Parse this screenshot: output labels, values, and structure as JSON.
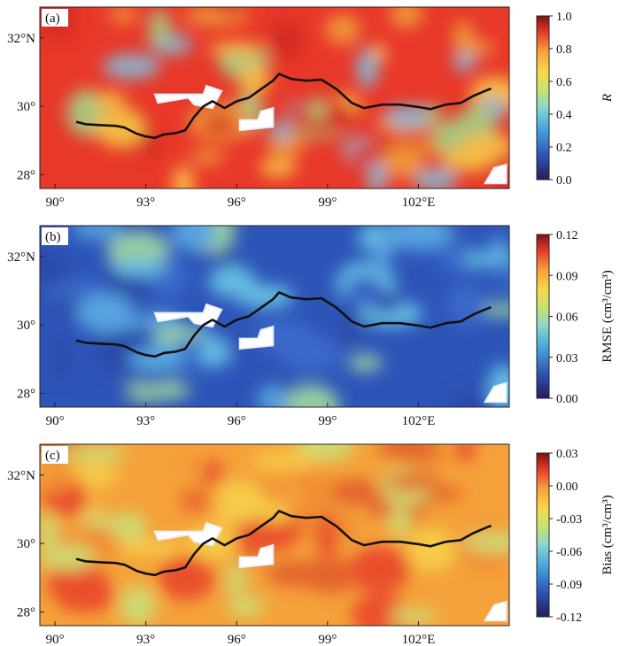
{
  "panels": [
    {
      "id": "a",
      "label": "(a)",
      "variable": "R",
      "colorbar": {
        "ticks": [
          "1.0",
          "0.8",
          "0.6",
          "0.4",
          "0.2",
          "0.0"
        ],
        "label": "R",
        "label_italic": true
      },
      "field": {
        "base": "#e8382a",
        "accents": [
          "#f0a43a",
          "#f7d24a",
          "#9fdc8a",
          "#7cc6e6",
          "#d12a22"
        ]
      }
    },
    {
      "id": "b",
      "label": "(b)",
      "variable": "RMSE",
      "colorbar": {
        "ticks": [
          "0.12",
          "0.09",
          "0.06",
          "0.03",
          "0.00"
        ],
        "label": "RMSE (cm³/cm³)",
        "label_italic": false
      },
      "field": {
        "base": "#2d55b8",
        "accents": [
          "#5fb1e6",
          "#6fd0ea",
          "#a8e0a0",
          "#3c6ccc",
          "#2a4aa8"
        ]
      }
    },
    {
      "id": "c",
      "label": "(c)",
      "variable": "Bias",
      "colorbar": {
        "ticks": [
          "0.03",
          "0.00",
          "-0.03",
          "-0.06",
          "-0.09",
          "-0.12"
        ],
        "label": "Bias (cm³/cm³)",
        "label_italic": false
      },
      "field": {
        "base": "#f5a23a",
        "accents": [
          "#f7d34c",
          "#e8402c",
          "#c8e27a",
          "#f08a32",
          "#e05a2a"
        ]
      }
    }
  ],
  "axes": {
    "x_ticks": [
      "90°",
      "93°",
      "96°",
      "99°",
      "102°E"
    ],
    "x_values": [
      90,
      93,
      96,
      99,
      102
    ],
    "y_ticks": [
      "32°N",
      "30°",
      "28°"
    ],
    "y_values": [
      32,
      30,
      28
    ],
    "lon_range": [
      89.5,
      105.0
    ],
    "lat_range": [
      27.6,
      32.9
    ]
  },
  "boundary_line": {
    "points": [
      [
        90.7,
        29.55
      ],
      [
        91.0,
        29.48
      ],
      [
        91.5,
        29.45
      ],
      [
        92.0,
        29.43
      ],
      [
        92.3,
        29.38
      ],
      [
        92.7,
        29.2
      ],
      [
        93.0,
        29.12
      ],
      [
        93.3,
        29.08
      ],
      [
        93.6,
        29.18
      ],
      [
        94.0,
        29.22
      ],
      [
        94.3,
        29.3
      ],
      [
        94.6,
        29.7
      ],
      [
        94.9,
        30.0
      ],
      [
        95.2,
        30.15
      ],
      [
        95.6,
        29.95
      ],
      [
        96.0,
        30.15
      ],
      [
        96.4,
        30.25
      ],
      [
        96.8,
        30.5
      ],
      [
        97.2,
        30.75
      ],
      [
        97.4,
        30.95
      ],
      [
        97.8,
        30.8
      ],
      [
        98.3,
        30.75
      ],
      [
        98.8,
        30.78
      ],
      [
        99.3,
        30.5
      ],
      [
        99.8,
        30.1
      ],
      [
        100.2,
        29.95
      ],
      [
        100.8,
        30.05
      ],
      [
        101.4,
        30.05
      ],
      [
        102.0,
        29.98
      ],
      [
        102.4,
        29.92
      ],
      [
        102.9,
        30.05
      ],
      [
        103.4,
        30.1
      ],
      [
        103.8,
        30.3
      ],
      [
        104.2,
        30.45
      ],
      [
        104.4,
        30.52
      ]
    ]
  },
  "mask_regions": [
    {
      "name": "mask-a",
      "poly": [
        [
          93.3,
          30.35
        ],
        [
          94.9,
          30.35
        ],
        [
          95.0,
          30.6
        ],
        [
          95.5,
          30.45
        ],
        [
          95.2,
          29.95
        ],
        [
          94.6,
          30.05
        ],
        [
          94.4,
          30.25
        ],
        [
          93.4,
          30.1
        ]
      ]
    },
    {
      "name": "mask-b",
      "poly": [
        [
          96.1,
          29.6
        ],
        [
          96.7,
          29.6
        ],
        [
          96.8,
          29.85
        ],
        [
          97.2,
          29.95
        ],
        [
          97.2,
          29.4
        ],
        [
          96.1,
          29.3
        ]
      ]
    },
    {
      "name": "mask-c",
      "poly": [
        [
          104.2,
          27.75
        ],
        [
          104.9,
          27.75
        ],
        [
          104.9,
          28.3
        ],
        [
          104.5,
          28.2
        ]
      ]
    }
  ]
}
